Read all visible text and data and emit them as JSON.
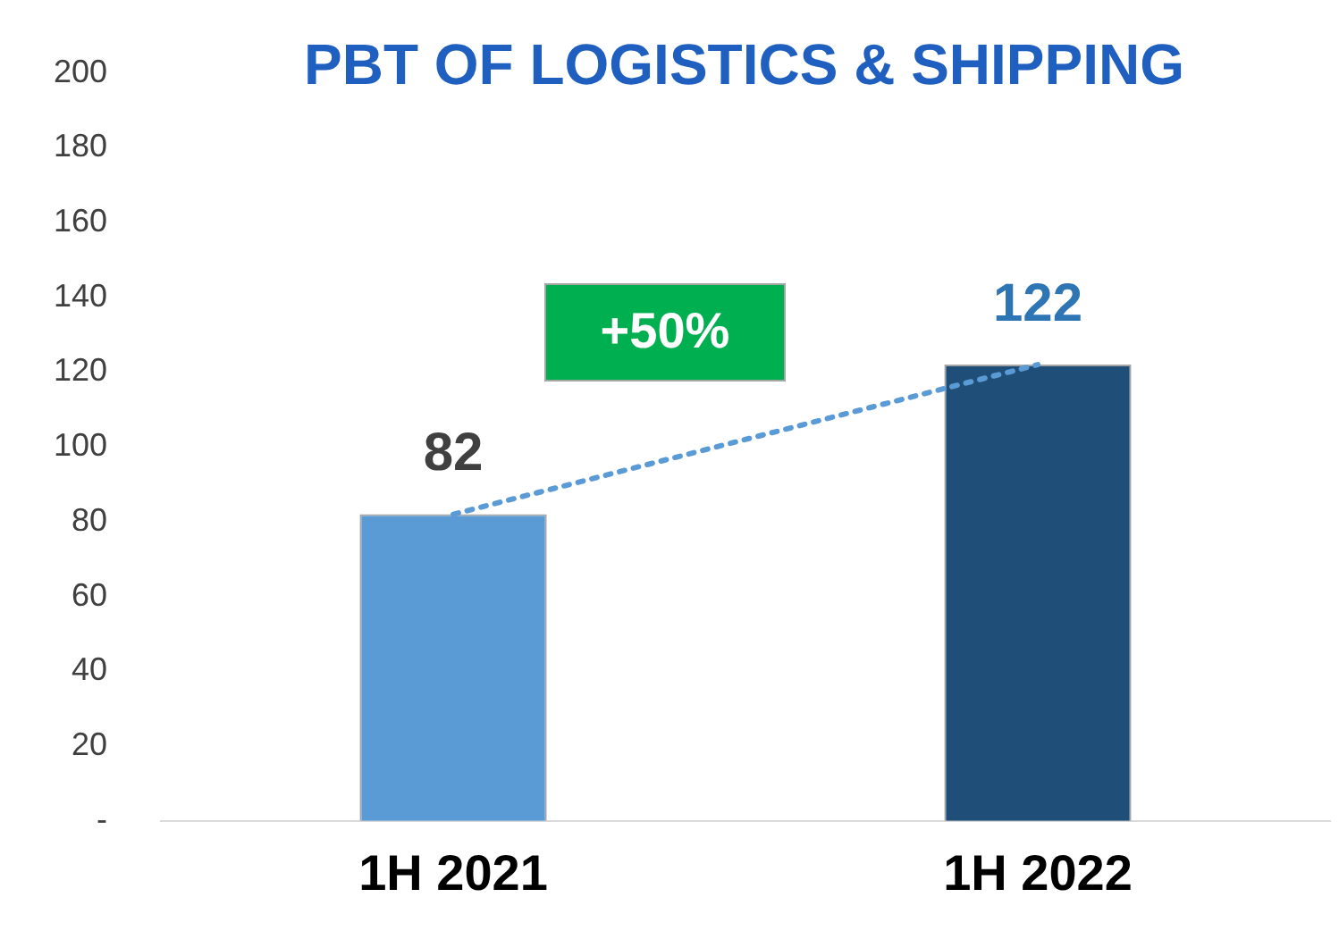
{
  "chart_data": {
    "type": "bar",
    "title": "PBT OF LOGISTICS & SHIPPING",
    "categories": [
      "1H 2021",
      "1H 2022"
    ],
    "series": [
      {
        "colors": [
          "#5b9bd5",
          "#1f4e79"
        ],
        "values": [
          82,
          122
        ],
        "data_labels": true
      },
      {
        "type": "line",
        "color": "#5b9bd5",
        "values": [
          82,
          122
        ],
        "line_style": "dotted",
        "marker": "none"
      }
    ],
    "ylim": [
      0,
      200
    ],
    "yticks": [
      {
        "value": 0,
        "label": "-"
      },
      20,
      40,
      60,
      80,
      100,
      120,
      140,
      160,
      180,
      200
    ],
    "grid": false,
    "legend": false,
    "annotations": [
      "+50%"
    ]
  }
}
